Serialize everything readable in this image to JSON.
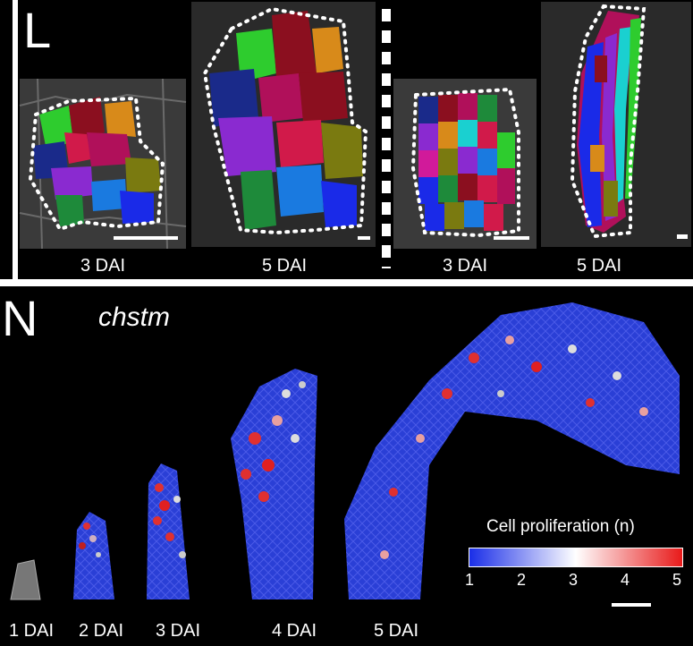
{
  "panel_L": {
    "letter": "L",
    "captions": [
      "3 DAI",
      "5 DAI",
      "3 DAI",
      "5 DAI"
    ]
  },
  "panel_N": {
    "letter": "N",
    "genotype": "chstm",
    "stage_labels": [
      "1 DAI",
      "2 DAI",
      "3 DAI",
      "4 DAI",
      "5 DAI"
    ]
  },
  "legend": {
    "title": "Cell proliferation (n)",
    "ticks": [
      "1",
      "2",
      "3",
      "4",
      "5"
    ],
    "colors": [
      "#1a2ee8",
      "#ffffff",
      "#e81a1a"
    ]
  },
  "colors": {
    "background": "#000000",
    "divider": "#ffffff",
    "organ_blue": "#2a3fd6"
  }
}
